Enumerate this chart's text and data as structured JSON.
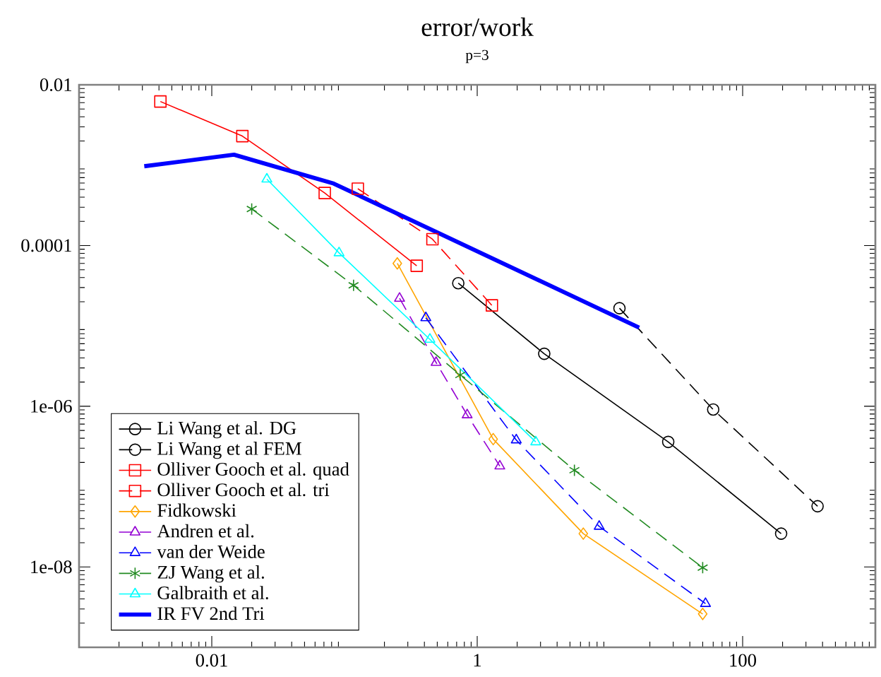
{
  "chart_data": {
    "type": "line",
    "title": "error/work",
    "subtitle": "p=3",
    "log": "xy",
    "xlim": [
      0.001,
      1000
    ],
    "ylim": [
      1e-09,
      0.01
    ],
    "xticks": [
      0.01,
      1,
      100
    ],
    "yticks": [
      0.01,
      0.0001,
      {
        "value": 1e-06,
        "label": "1e-06"
      },
      {
        "value": 1e-08,
        "label": "1e-08"
      }
    ],
    "legend": "bottom left",
    "series": [
      {
        "name": "Li Wang et al. DG",
        "color": "#000000",
        "marker": "circle",
        "line_style": "solid",
        "x": [
          0.72,
          3.2,
          27.5,
          195
        ],
        "values": [
          3.4e-05,
          4.5e-06,
          3.6e-07,
          2.6e-08
        ]
      },
      {
        "name": "Li Wang et al FEM",
        "color": "#000000",
        "marker": "circle",
        "line_style": "dashed",
        "x": [
          11.8,
          60,
          367
        ],
        "values": [
          1.66e-05,
          9.1e-07,
          5.7e-08
        ]
      },
      {
        "name": "Olliver Gooch et al. quad",
        "color": "#ff0000",
        "marker": "square",
        "line_style": "solid",
        "x": [
          0.0041,
          0.017,
          0.071,
          0.35
        ],
        "values": [
          0.0062,
          0.0023,
          0.00045,
          5.6e-05
        ]
      },
      {
        "name": "Olliver Gooch et al. tri",
        "color": "#ff0000",
        "marker": "square",
        "line_style": "dashed",
        "x": [
          0.126,
          0.46,
          1.29
        ],
        "values": [
          0.00051,
          0.00012,
          1.8e-05
        ]
      },
      {
        "name": "Fidkowski",
        "color": "#ffa500",
        "marker": "diamond",
        "line_style": "solid",
        "x": [
          0.25,
          1.32,
          6.3,
          50
        ],
        "values": [
          6e-05,
          3.9e-07,
          2.6e-08,
          2.6e-09
        ]
      },
      {
        "name": "Andren et al.",
        "color": "#9400d3",
        "marker": "triangle",
        "line_style": "dashed",
        "x": [
          0.26,
          0.49,
          0.84,
          1.48
        ],
        "values": [
          2.2e-05,
          3.5e-06,
          7.8e-07,
          1.8e-07
        ]
      },
      {
        "name": "van der Weide",
        "color": "#0000ff",
        "marker": "triangle",
        "line_style": "dashed",
        "x": [
          0.41,
          1.97,
          8.3,
          52.5
        ],
        "values": [
          1.26e-05,
          3.8e-07,
          3.2e-08,
          3.5e-09
        ]
      },
      {
        "name": "ZJ Wang et al.",
        "color": "#228b22",
        "marker": "cross",
        "line_style": "dashed",
        "x": [
          0.02,
          0.117,
          0.745,
          5.4,
          50
        ],
        "values": [
          0.000285,
          3.2e-05,
          2.45e-06,
          1.6e-07,
          9.8e-09
        ]
      },
      {
        "name": "Galbraith et al.",
        "color": "#00ffff",
        "marker": "triangle",
        "line_style": "solid",
        "x": [
          0.026,
          0.091,
          0.44,
          2.76
        ],
        "values": [
          0.00067,
          8.1e-05,
          6.8e-06,
          3.6e-07
        ]
      },
      {
        "name": "IR FV 2nd Tri",
        "color": "#0000ff",
        "marker": "none",
        "line_style": "solid",
        "x": [
          0.0031,
          0.0147,
          0.083,
          16.6
        ],
        "values": [
          0.00097,
          0.00135,
          0.00059,
          9.5e-06
        ]
      }
    ]
  }
}
